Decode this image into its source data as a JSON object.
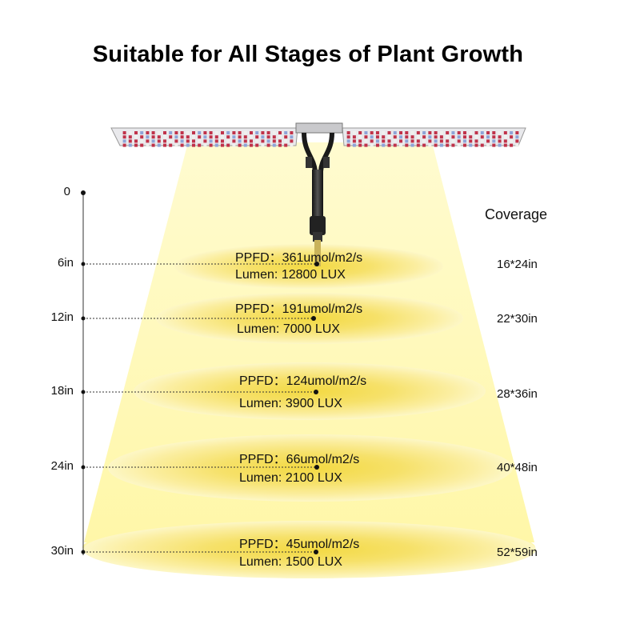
{
  "title": "Suitable for All Stages of Plant Growth",
  "origin_label": "0",
  "coverage_title": "Coverage",
  "levels": [
    {
      "height": "6in",
      "ppfd": "PPFD：361umol/m2/s",
      "lumen": "Lumen: 12800 LUX",
      "coverage": "16*24in"
    },
    {
      "height": "12in",
      "ppfd": "PPFD：191umol/m2/s",
      "lumen": "Lumen: 7000 LUX",
      "coverage": "22*30in"
    },
    {
      "height": "18in",
      "ppfd": "PPFD：124umol/m2/s",
      "lumen": "Lumen: 3900 LUX",
      "coverage": "28*36in"
    },
    {
      "height": "24in",
      "ppfd": "PPFD：66umol/m2/s",
      "lumen": "Lumen: 2100 LUX",
      "coverage": "40*48in"
    },
    {
      "height": "30in",
      "ppfd": "PPFD：45umol/m2/s",
      "lumen": "Lumen: 1500 LUX",
      "coverage": "52*59in"
    }
  ],
  "colors": {
    "beam": "#fffbc4",
    "spot_inner": "#f6df55",
    "spot_outer": "#fdf6b3",
    "panel_red": "#c0334a",
    "panel_blue": "#8fa4d8",
    "panel_white": "#f0f0ee"
  }
}
